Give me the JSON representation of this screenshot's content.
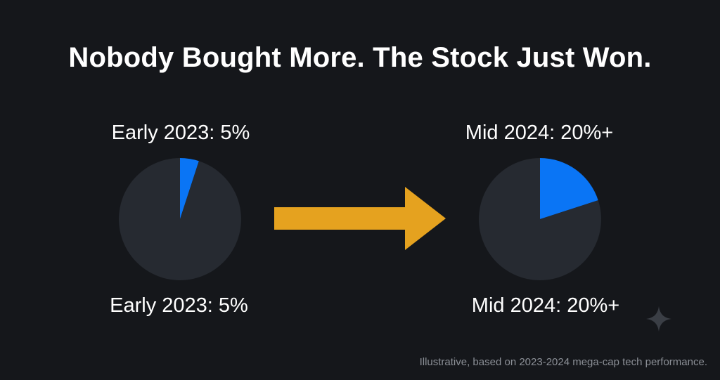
{
  "colors": {
    "background": "#15171b",
    "pie_base": "#262a31",
    "highlight": "#0a75f5",
    "arrow": "#e5a21f",
    "footnote": "#8b8f96",
    "sparkle": "#3a3e45"
  },
  "title": "Nobody Bought More. The Stock Just Won.",
  "footnote": "Illustrative, based on 2023-2024 mega-cap tech performance.",
  "icons": {
    "arrow": "right-arrow-icon",
    "sparkle": "sparkle-icon"
  },
  "chart_data": [
    {
      "type": "pie",
      "title": "Early 2023: 5%",
      "caption": "Early 2023: 5%",
      "slices": [
        {
          "value": 5,
          "color": "#0a75f5"
        },
        {
          "value": 95,
          "color": "#262a31"
        }
      ]
    },
    {
      "type": "pie",
      "title": "Mid 2024: 20%+",
      "caption": "Mid 2024: 20%+",
      "slices": [
        {
          "value": 20,
          "color": "#0a75f5"
        },
        {
          "value": 80,
          "color": "#262a31"
        }
      ]
    }
  ]
}
